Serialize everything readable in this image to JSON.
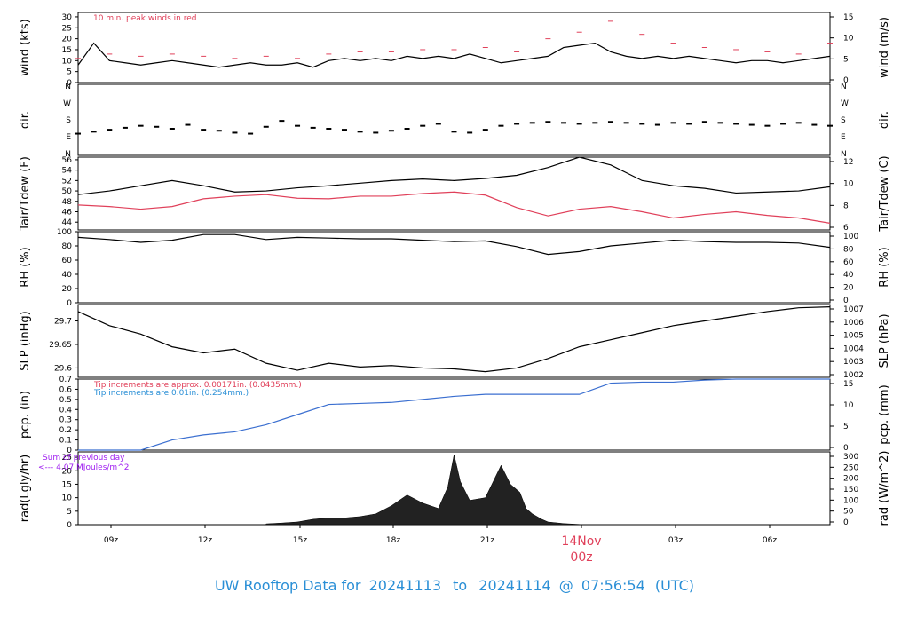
{
  "footer": {
    "prefix": "UW Rooftop Data for",
    "start": "20241113",
    "to": "to",
    "end": "20241114",
    "at": "@",
    "time": "07:56:54",
    "tz": "(UTC)",
    "color": "#2a8fd6"
  },
  "colors": {
    "red": "#e0405a",
    "blue": "#3b6fd0",
    "purple": "#a020f0",
    "black": "#000000"
  },
  "chart_data": [
    {
      "type": "line",
      "ylabel_left": "wind (kts)",
      "ylabel_right": "wind (m/s)",
      "annotation": "10 min. peak winds in red",
      "ylim": [
        0,
        32
      ],
      "yticks_left": [
        0,
        5,
        10,
        15,
        20,
        25,
        30
      ],
      "yticks_right": [
        0,
        5,
        10,
        15
      ],
      "series": [
        {
          "name": "wind",
          "x": [
            0,
            0.5,
            1,
            1.5,
            2,
            2.5,
            3,
            3.5,
            4,
            4.5,
            5,
            5.5,
            6,
            6.5,
            7,
            7.5,
            8,
            8.5,
            9,
            9.5,
            10,
            10.5,
            11,
            11.5,
            12,
            12.5,
            13,
            13.5,
            14,
            14.5,
            15,
            15.5,
            16,
            16.5,
            17,
            17.5,
            18,
            18.5,
            19,
            19.5,
            20,
            20.5,
            21,
            21.5,
            22,
            22.5,
            23,
            23.5,
            24
          ],
          "y": [
            8,
            18,
            10,
            9,
            8,
            9,
            10,
            9,
            8,
            7,
            8,
            9,
            8,
            8,
            9,
            7,
            10,
            11,
            10,
            11,
            10,
            12,
            11,
            12,
            11,
            13,
            11,
            9,
            10,
            11,
            12,
            16,
            17,
            18,
            14,
            12,
            11,
            12,
            11,
            12,
            11,
            10,
            9,
            10,
            10,
            9,
            10,
            11,
            12
          ]
        },
        {
          "name": "peak",
          "x": [
            0,
            1,
            2,
            3,
            4,
            5,
            6,
            7,
            8,
            9,
            10,
            11,
            12,
            13,
            14,
            15,
            16,
            17,
            18,
            19,
            20,
            21,
            22,
            23,
            24
          ],
          "y": [
            11,
            13,
            12,
            13,
            12,
            11,
            12,
            11,
            13,
            14,
            14,
            15,
            15,
            16,
            14,
            20,
            23,
            28,
            22,
            18,
            16,
            15,
            14,
            13,
            18
          ]
        }
      ]
    },
    {
      "type": "scatter",
      "ylabel_left": "dir.",
      "ylabel_right": "dir.",
      "ytick_labels": [
        "N",
        "E",
        "S",
        "W",
        "N"
      ],
      "ylim": [
        0,
        360
      ],
      "series": [
        {
          "name": "dir",
          "x": [
            0,
            0.5,
            1,
            1.5,
            2,
            2.5,
            3,
            3.5,
            4,
            4.5,
            5,
            5.5,
            6,
            6.5,
            7,
            7.5,
            8,
            8.5,
            9,
            9.5,
            10,
            10.5,
            11,
            11.5,
            12,
            12.5,
            13,
            13.5,
            14,
            14.5,
            15,
            15.5,
            16,
            16.5,
            17,
            17.5,
            18,
            18.5,
            19,
            19.5,
            20,
            20.5,
            21,
            21.5,
            22,
            22.5,
            23,
            23.5,
            24
          ],
          "y": [
            110,
            120,
            130,
            140,
            150,
            145,
            135,
            155,
            130,
            125,
            115,
            110,
            145,
            175,
            150,
            140,
            135,
            130,
            120,
            115,
            125,
            135,
            150,
            160,
            120,
            115,
            130,
            150,
            160,
            165,
            170,
            165,
            160,
            165,
            170,
            165,
            160,
            155,
            165,
            160,
            170,
            165,
            160,
            155,
            150,
            160,
            165,
            155,
            150
          ]
        }
      ]
    },
    {
      "type": "line",
      "ylabel_left": "Tair/Tdew (F)",
      "ylabel_right": "Tair/Tdew (C)",
      "ylim": [
        42.5,
        56.5
      ],
      "yticks_left": [
        44,
        46,
        48,
        50,
        52,
        54,
        56
      ],
      "yticks_right": [
        6,
        8,
        10,
        12
      ],
      "series": [
        {
          "name": "Tair",
          "x": [
            0,
            1,
            2,
            3,
            4,
            5,
            6,
            7,
            8,
            9,
            10,
            11,
            12,
            13,
            14,
            15,
            16,
            17,
            18,
            19,
            20,
            21,
            22,
            23,
            24
          ],
          "y": [
            49.3,
            50,
            51,
            52,
            51,
            49.8,
            50,
            50.6,
            51,
            51.5,
            52,
            52.3,
            52,
            52.4,
            53,
            54.5,
            56.5,
            55,
            52,
            51,
            50.5,
            49.6,
            49.8,
            50,
            50.8
          ]
        },
        {
          "name": "Tdew",
          "x": [
            0,
            1,
            2,
            3,
            4,
            5,
            6,
            7,
            8,
            9,
            10,
            11,
            12,
            13,
            14,
            15,
            16,
            17,
            18,
            19,
            20,
            21,
            22,
            23,
            24
          ],
          "y": [
            47.3,
            47,
            46.5,
            47,
            48.5,
            49,
            49.3,
            48.6,
            48.5,
            49,
            49,
            49.5,
            49.8,
            49.2,
            46.8,
            45.2,
            46.5,
            47,
            46,
            44.8,
            45.5,
            46,
            45.3,
            44.8,
            43.8
          ]
        }
      ]
    },
    {
      "type": "line",
      "ylabel_left": "RH (%)",
      "ylabel_right": "RH (%)",
      "ylim": [
        0,
        100
      ],
      "yticks_left": [
        0,
        20,
        40,
        60,
        80,
        100
      ],
      "yticks_right": [
        0,
        20,
        40,
        60,
        80,
        100
      ],
      "series": [
        {
          "name": "RH",
          "x": [
            0,
            1,
            2,
            3,
            4,
            5,
            6,
            7,
            8,
            9,
            10,
            11,
            12,
            13,
            14,
            15,
            16,
            17,
            18,
            19,
            20,
            21,
            22,
            23,
            24
          ],
          "y": [
            92,
            89,
            85,
            88,
            96,
            96,
            89,
            92,
            91,
            90,
            90,
            88,
            86,
            87,
            79,
            68,
            72,
            80,
            84,
            88,
            86,
            85,
            85,
            84,
            78
          ]
        }
      ]
    },
    {
      "type": "line",
      "ylabel_left": "SLP (inHg)",
      "ylabel_right": "SLP (hPa)",
      "ylim": [
        29.58,
        29.735
      ],
      "yticks_left": [
        29.6,
        29.65,
        29.7
      ],
      "yticks_right": [
        1002,
        1003,
        1004,
        1005,
        1006,
        1007
      ],
      "series": [
        {
          "name": "SLP",
          "x": [
            0,
            1,
            2,
            3,
            4,
            5,
            6,
            7,
            8,
            9,
            10,
            11,
            12,
            13,
            14,
            15,
            16,
            17,
            18,
            19,
            20,
            21,
            22,
            23,
            24
          ],
          "y": [
            29.72,
            29.69,
            29.672,
            29.645,
            29.632,
            29.64,
            29.61,
            29.595,
            29.61,
            29.602,
            29.605,
            29.6,
            29.598,
            29.592,
            29.6,
            29.62,
            29.645,
            29.66,
            29.675,
            29.69,
            29.7,
            29.71,
            29.72,
            29.728,
            29.73
          ]
        }
      ]
    },
    {
      "type": "line",
      "ylabel_left": "pcp. (in)",
      "ylabel_right": "pcp. (mm)",
      "annotation_1": "Tip increments are approx. 0.00171in. (0.0435mm.)",
      "annotation_2": "Tip increments are 0.01in. (0.254mm.)",
      "ylim": [
        0,
        0.7
      ],
      "yticks_left": [
        0,
        0.1,
        0.2,
        0.3,
        0.4,
        0.5,
        0.6,
        0.7
      ],
      "yticks_right": [
        0,
        5,
        10,
        15
      ],
      "series": [
        {
          "name": "pcp",
          "x": [
            0,
            2,
            3,
            4,
            5,
            6,
            7,
            8,
            9,
            10,
            11,
            12,
            13,
            14,
            15,
            16,
            17,
            18,
            19,
            20,
            21,
            22,
            23,
            24
          ],
          "y": [
            0,
            0,
            0.1,
            0.15,
            0.18,
            0.25,
            0.35,
            0.45,
            0.46,
            0.47,
            0.5,
            0.53,
            0.55,
            0.55,
            0.55,
            0.55,
            0.66,
            0.67,
            0.67,
            0.69,
            0.7,
            0.7,
            0.7,
            0.7
          ]
        }
      ]
    },
    {
      "type": "area",
      "ylabel_left": "rad(Lgly/hr)",
      "ylabel_right": "rad (W/m^2)",
      "annotation_1": "Sum of previous day",
      "annotation_2": "<--- 4.07 MJoules/m^2",
      "ylim": [
        0,
        27
      ],
      "yticks_left": [
        0,
        5,
        10,
        15,
        20,
        25
      ],
      "yticks_right": [
        0,
        50,
        100,
        150,
        200,
        250,
        300
      ],
      "series": [
        {
          "name": "rad",
          "x": [
            6.0,
            6.5,
            7,
            7.5,
            8,
            8.5,
            9,
            9.5,
            10,
            10.5,
            11,
            11.5,
            11.8,
            12,
            12.2,
            12.5,
            13,
            13.5,
            13.8,
            14.1,
            14.3,
            14.5,
            14.8,
            15,
            15.5,
            16
          ],
          "y": [
            0.3,
            0.6,
            1,
            2,
            2.5,
            2.5,
            3,
            4,
            7,
            11,
            8,
            6,
            14,
            26,
            16,
            9,
            10,
            22,
            15,
            12,
            6,
            4,
            2,
            1,
            0.4,
            0.1
          ]
        }
      ],
      "xlabel_ticks": [
        "09z",
        "12z",
        "15z",
        "18z",
        "21z",
        "14Nov",
        "03z",
        "06z"
      ],
      "date_label": "14Nov",
      "date_sublabel": "00z"
    }
  ]
}
